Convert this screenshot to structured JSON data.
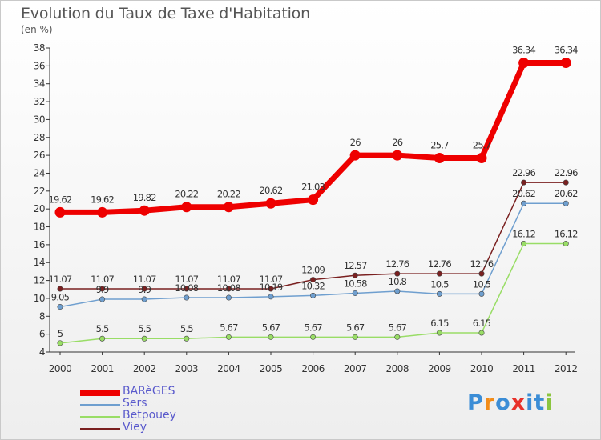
{
  "title": "Evolution du Taux de Taxe d'Habitation",
  "unit_label": "(en %)",
  "logo": {
    "text": "Proxiti",
    "colors": [
      "#3b8dd6",
      "#f28c18",
      "#3b8dd6",
      "#e8312a",
      "#3b8dd6",
      "#3b8dd6",
      "#8bc53f"
    ]
  },
  "chart_data": {
    "type": "line",
    "title": "Evolution du Taux de Taxe d'Habitation",
    "ylabel": "(en %)",
    "x": [
      "2000",
      "2001",
      "2002",
      "2003",
      "2004",
      "2005",
      "2006",
      "2007",
      "2008",
      "2009",
      "2010",
      "2011",
      "2012"
    ],
    "ylim": [
      4,
      38
    ],
    "yticks": [
      4,
      6,
      8,
      10,
      12,
      14,
      16,
      18,
      20,
      22,
      24,
      26,
      28,
      30,
      32,
      34,
      36,
      38
    ],
    "grid": false,
    "legend_position": "bottom-left",
    "series": [
      {
        "name": "BARèGES",
        "color": "#ee0000",
        "values": [
          19.62,
          19.62,
          19.82,
          20.22,
          20.22,
          20.62,
          21.03,
          26,
          26,
          25.7,
          25.7,
          36.34,
          36.34
        ],
        "labels": [
          "19.62",
          "19.62",
          "19.82",
          "20.22",
          "20.22",
          "20.62",
          "21.03",
          "26",
          "26",
          "25.7",
          "25.7",
          "36.34",
          "36.34"
        ]
      },
      {
        "name": "Sers",
        "color": "#6f9fcf",
        "values": [
          9.05,
          9.9,
          9.9,
          10.08,
          10.08,
          10.19,
          10.32,
          10.58,
          10.8,
          10.5,
          10.5,
          20.62,
          20.62
        ],
        "labels": [
          "9.05",
          "9.9",
          "9.9",
          "10.08",
          "10.08",
          "10.19",
          "10.32",
          "10.58",
          "10.8",
          "10.5",
          "10.5",
          "20.62",
          "20.62"
        ]
      },
      {
        "name": "Betpouey",
        "color": "#99dd66",
        "values": [
          5,
          5.5,
          5.5,
          5.5,
          5.67,
          5.67,
          5.67,
          5.67,
          5.67,
          6.15,
          6.15,
          16.12,
          16.12
        ],
        "labels": [
          "5",
          "5.5",
          "5.5",
          "5.5",
          "5.67",
          "5.67",
          "5.67",
          "5.67",
          "5.67",
          "6.15",
          "6.15",
          "16.12",
          "16.12"
        ]
      },
      {
        "name": "Viey",
        "color": "#7a2020",
        "values": [
          11.07,
          11.07,
          11.07,
          11.07,
          11.07,
          11.07,
          12.09,
          12.57,
          12.76,
          12.76,
          12.76,
          22.96,
          22.96
        ],
        "labels": [
          "11.07",
          "11.07",
          "11.07",
          "11.07",
          "11.07",
          "11.07",
          "12.09",
          "12.57",
          "12.76",
          "12.76",
          "12.76",
          "22.96",
          "22.96"
        ]
      }
    ]
  }
}
